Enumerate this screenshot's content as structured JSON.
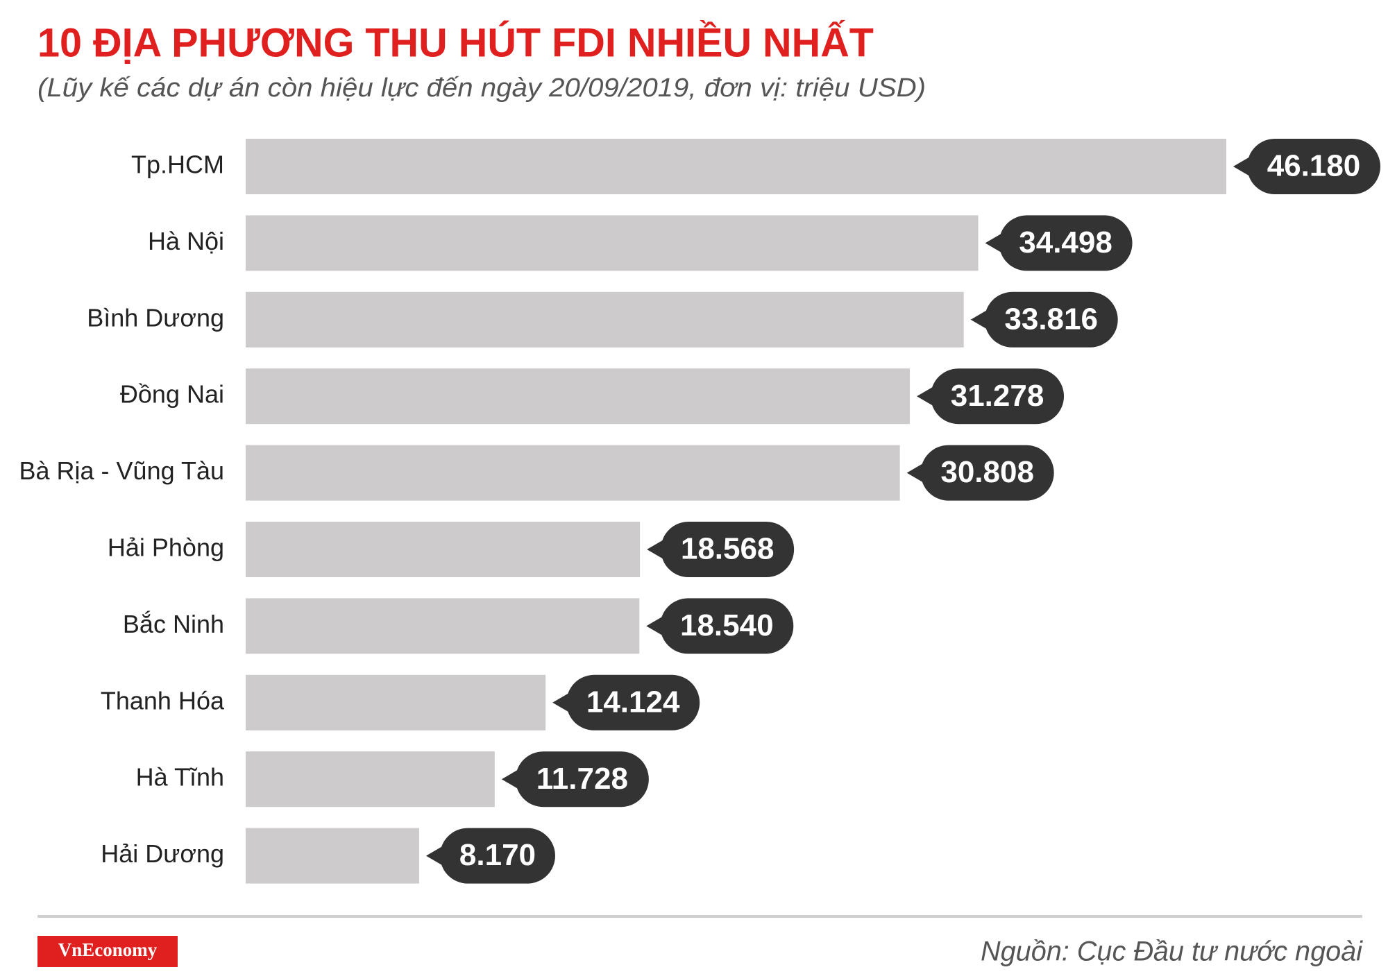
{
  "chart_data": {
    "type": "bar",
    "orientation": "horizontal",
    "title": "10 ĐỊA PHƯƠNG THU HÚT FDI NHIỀU NHẤT",
    "subtitle": "(Lũy kế các dự án còn hiệu lực đến ngày 20/09/2019, đơn vị: triệu USD)",
    "categories": [
      "Tp.HCM",
      "Hà Nội",
      "Bình Dương",
      "Đồng Nai",
      "Bà Rịa - Vũng Tàu",
      "Hải Phòng",
      "Bắc Ninh",
      "Thanh Hóa",
      "Hà Tĩnh",
      "Hải Dương"
    ],
    "values": [
      46180,
      34498,
      33816,
      31278,
      30808,
      18568,
      18540,
      14124,
      11728,
      8170
    ],
    "value_labels": [
      "46.180",
      "34.498",
      "33.816",
      "31.278",
      "30.808",
      "18.568",
      "18.540",
      "14.124",
      "11.728",
      "8.170"
    ],
    "color": "#cdcbcb",
    "label_color": "#333333",
    "title_color": "#e0201f",
    "source": "Nguồn: Cục Đầu tư nước ngoài",
    "logo": "VnEconomy"
  }
}
